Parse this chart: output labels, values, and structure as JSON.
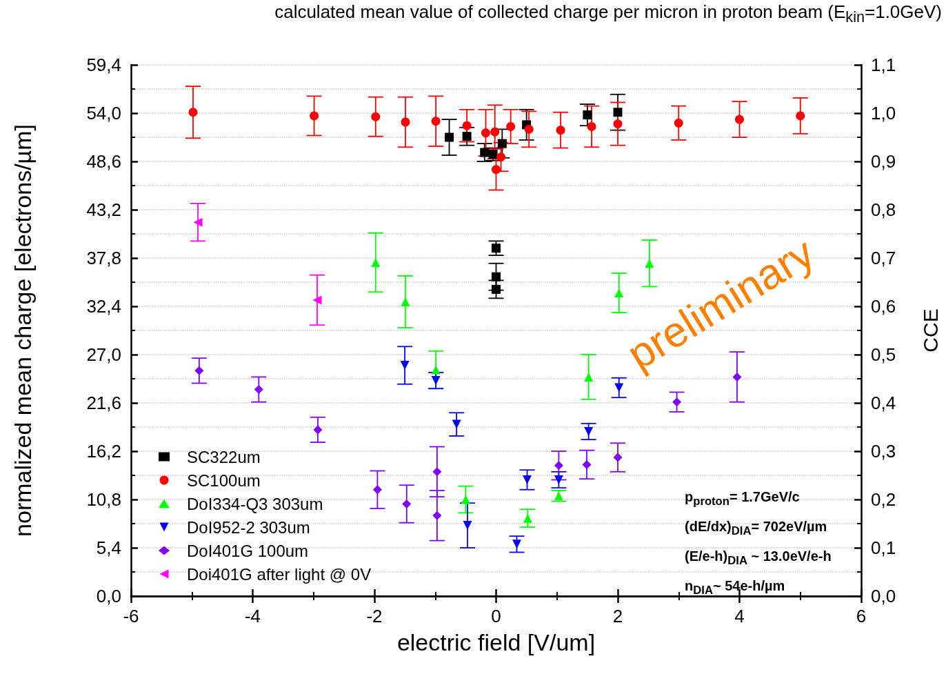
{
  "chart_data": {
    "type": "scatter",
    "title": "calculated mean value of collected charge per micron in proton beam (E$_{kin}$=1.0GeV)",
    "xlabel": "electric field [V/um]",
    "ylabel": "normalized mean charge [electrons/µm]",
    "y2label": "CCE",
    "xlim": [
      -6,
      6
    ],
    "xticks": [
      -6,
      -4,
      -2,
      0,
      2,
      4,
      6
    ],
    "ylim": [
      0,
      59.4
    ],
    "yticks": [
      {
        "value": 0,
        "label": "0,0"
      },
      {
        "value": 5.4,
        "label": "5,4"
      },
      {
        "value": 10.8,
        "label": "10,8"
      },
      {
        "value": 16.2,
        "label": "16,2"
      },
      {
        "value": 21.6,
        "label": "21,6"
      },
      {
        "value": 27,
        "label": "27,0"
      },
      {
        "value": 32.4,
        "label": "32,4"
      },
      {
        "value": 37.8,
        "label": "37,8"
      },
      {
        "value": 43.2,
        "label": "43,2"
      },
      {
        "value": 48.6,
        "label": "48,6"
      },
      {
        "value": 54,
        "label": "54,0"
      },
      {
        "value": 59.4,
        "label": "59,4"
      }
    ],
    "y2lim": [
      0,
      1.1
    ],
    "y2ticks": [
      {
        "value": 0,
        "label": "0,0"
      },
      {
        "value": 0.1,
        "label": "0,1"
      },
      {
        "value": 0.2,
        "label": "0,2"
      },
      {
        "value": 0.3,
        "label": "0,3"
      },
      {
        "value": 0.4,
        "label": "0,4"
      },
      {
        "value": 0.5,
        "label": "0,5"
      },
      {
        "value": 0.6,
        "label": "0,6"
      },
      {
        "value": 0.7,
        "label": "0,7"
      },
      {
        "value": 0.8,
        "label": "0,8"
      },
      {
        "value": 0.9,
        "label": "0,9"
      },
      {
        "value": 1.0,
        "label": "1,0"
      },
      {
        "value": 1.1,
        "label": "1,1"
      }
    ],
    "grid": "y",
    "legend": "bottom left",
    "series": [
      {
        "name": "SC322um",
        "color": "#000000",
        "marker": "square",
        "x": [
          -0.77,
          -0.48,
          -0.19,
          -0.05,
          0.1,
          0,
          0,
          0,
          0.5,
          1.5,
          2.0
        ],
        "values": [
          51.3,
          51.4,
          49.6,
          49.4,
          50.6,
          38.9,
          35.7,
          34.3,
          52.7,
          53.8,
          54.1
        ],
        "errors": [
          2.0,
          1.0,
          1.0,
          0.7,
          1.6,
          0.8,
          1.5,
          1.0,
          1.7,
          1.2,
          2.0
        ]
      },
      {
        "name": "SC100um",
        "color": "#ff0000",
        "marker": "circle",
        "x": [
          -4.98,
          -2.99,
          -1.98,
          -1.49,
          -0.99,
          -0.48,
          -0.17,
          -0.02,
          0,
          0.08,
          0.24,
          0.54,
          1.06,
          1.57,
          2.0,
          3.0,
          4.0,
          5.0
        ],
        "values": [
          54.1,
          53.7,
          53.6,
          53.0,
          53.1,
          52.6,
          51.8,
          51.9,
          47.7,
          49.1,
          52.5,
          52.2,
          52.1,
          52.5,
          52.8,
          52.9,
          53.3,
          53.7
        ],
        "errors": [
          2.9,
          2.2,
          2.2,
          2.8,
          2.8,
          1.8,
          2.6,
          3.0,
          2.3,
          1.6,
          1.9,
          2.0,
          2.0,
          2.3,
          2.4,
          1.9,
          2.0,
          2.0
        ]
      },
      {
        "name": "DoI334-Q3 303um",
        "color": "#00ff00",
        "marker": "triangle",
        "x": [
          -1.98,
          -1.49,
          -0.99,
          -0.5,
          0.52,
          1.03,
          1.52,
          2.02,
          2.52
        ],
        "values": [
          37.3,
          32.9,
          25.3,
          10.8,
          8.7,
          11.2,
          24.5,
          33.9,
          37.2
        ],
        "errors": [
          3.3,
          2.9,
          2.1,
          1.5,
          1.0,
          0.6,
          2.5,
          2.2,
          2.6
        ]
      },
      {
        "name": "DoI952-2 303um",
        "color": "#0000ff",
        "marker": "triangle_down",
        "x": [
          -1.5,
          -0.99,
          -0.65,
          -0.47,
          0.34,
          0.51,
          1.03,
          1.52,
          2.02
        ],
        "values": [
          25.8,
          24.1,
          19.2,
          7.9,
          5.8,
          13.0,
          13.0,
          18.4,
          23.3
        ],
        "errors": [
          2.1,
          0.9,
          1.3,
          2.5,
          0.9,
          1.1,
          0.9,
          0.9,
          1.1
        ]
      },
      {
        "name": "DoI401G 100um",
        "color": "#8000ff",
        "marker": "diamond",
        "x": [
          -4.88,
          -3.9,
          -2.93,
          -1.95,
          -1.47,
          -0.97,
          -0.97,
          1.03,
          1.49,
          2.0,
          2.97,
          3.96
        ],
        "values": [
          25.2,
          23.1,
          18.6,
          11.9,
          10.3,
          13.9,
          9.0,
          14.6,
          14.7,
          15.5,
          21.7,
          24.5
        ],
        "errors": [
          1.4,
          1.4,
          1.4,
          2.1,
          2.1,
          2.8,
          2.8,
          1.6,
          1.6,
          1.6,
          1.1,
          2.8
        ]
      },
      {
        "name": "Doi401G after light @ 0V",
        "color": "#ff00ff",
        "marker": "triangle_left",
        "x": [
          -4.9,
          -2.94
        ],
        "values": [
          41.8,
          33.1
        ],
        "errors": [
          2.1,
          2.8
        ]
      }
    ],
    "annotations": [
      "preliminary",
      "p$_{proton}$= 1.7GeV/c",
      "(dE/dx)$_{DIA}$= 702eV/µm",
      "(E/e-h)$_{DIA}$ ~ 13.0eV/e-h",
      "n$_{DIA}$~ 54e-h/µm"
    ]
  }
}
